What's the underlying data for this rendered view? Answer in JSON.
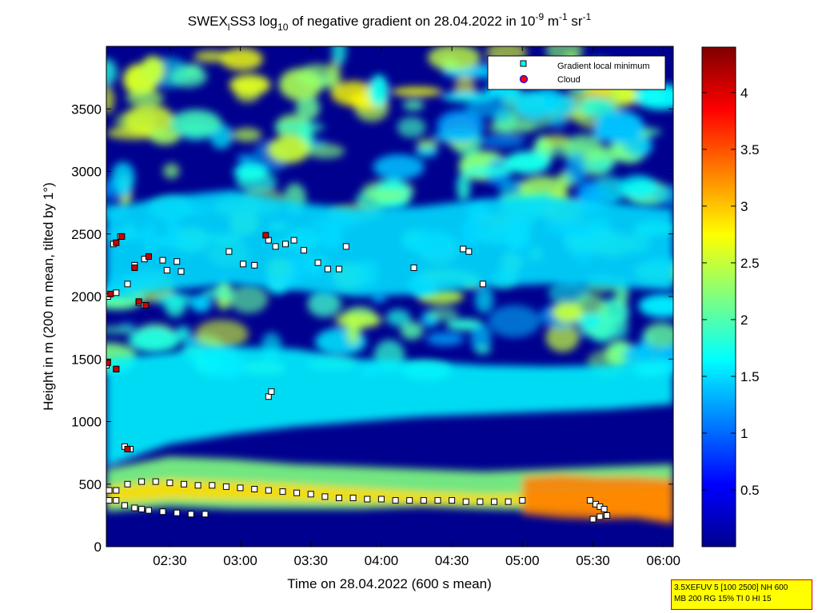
{
  "chart_data": {
    "type": "heatmap",
    "title": "SWEX_l SS3 log_10 of negative gradient on 28.04.2022 in 10^-9 m^-1 sr^-1",
    "title_parts": {
      "a": "SWEX",
      "b": "l",
      "c": "SS3 log",
      "d": "10",
      "e": " of negative gradient on 28.04.2022 in 10",
      "f": "-9",
      "g": " m",
      "h": "-1",
      "i": " sr",
      "j": "-1"
    },
    "xlabel": "Time on 28.04.2022 (600 s mean)",
    "ylabel": "Height in m (200 m mean, tilted by 1°)",
    "x_ticks": [
      "02:30",
      "03:00",
      "03:30",
      "04:00",
      "04:30",
      "05:00",
      "05:30",
      "06:00"
    ],
    "x_tick_hours": [
      2.5,
      3.0,
      3.5,
      4.0,
      4.5,
      5.0,
      5.5,
      6.0
    ],
    "xlim_hours": [
      2.05,
      6.07
    ],
    "y_ticks": [
      "0",
      "500",
      "1000",
      "1500",
      "2000",
      "2500",
      "3000",
      "3500"
    ],
    "y_tick_values": [
      0,
      500,
      1000,
      1500,
      2000,
      2500,
      3000,
      3500
    ],
    "ylim": [
      0,
      4000
    ],
    "colorbar": {
      "ticks": [
        "0.5",
        "1",
        "1.5",
        "2",
        "2.5",
        "3",
        "3.5",
        "4"
      ],
      "tick_values": [
        0.5,
        1,
        1.5,
        2,
        2.5,
        3,
        3.5,
        4
      ],
      "range": [
        0,
        4.4
      ],
      "colormap": "jet"
    },
    "legend": {
      "placement": "top-right",
      "entries": [
        {
          "label": "Gradient local minimum",
          "marker": "square",
          "color": "#00ffff"
        },
        {
          "label": "Cloud",
          "marker": "circle",
          "color": "#ff0000"
        }
      ]
    },
    "layers": [
      {
        "kind": "band",
        "from_hour": 2.05,
        "to_hour": 6.07,
        "lower_m": [
          280,
          320,
          300,
          300,
          300,
          320,
          300,
          290,
          280,
          260
        ],
        "upper_m": [
          620,
          720,
          700,
          660,
          640,
          620,
          600,
          620,
          640,
          660
        ],
        "level": 2.2
      },
      {
        "kind": "band",
        "from_hour": 2.05,
        "to_hour": 6.07,
        "lower_m": [
          340,
          380,
          370,
          360,
          350,
          340,
          340,
          320,
          260,
          200
        ],
        "upper_m": [
          480,
          540,
          520,
          500,
          470,
          440,
          420,
          430,
          450,
          480
        ],
        "level": 2.9
      },
      {
        "kind": "band",
        "from_hour": 5.0,
        "to_hour": 6.07,
        "lower_m": [
          260,
          230,
          220,
          230,
          180
        ],
        "upper_m": [
          560,
          580,
          560,
          560,
          540
        ],
        "level": 3.3
      },
      {
        "kind": "band",
        "from_hour": 2.05,
        "to_hour": 6.07,
        "lower_m": [
          640,
          820,
          900,
          960,
          1000,
          1040,
          1060,
          1080,
          1100,
          1140
        ],
        "upper_m": [
          1500,
          1550,
          1600,
          1580,
          1500,
          1480,
          1450,
          1440,
          1450,
          1500
        ],
        "level": 1.6
      },
      {
        "kind": "band",
        "from_hour": 2.05,
        "to_hour": 6.07,
        "lower_m": [
          2000,
          2050,
          2100,
          2050,
          2000,
          2020,
          2080,
          2100,
          2080,
          2050
        ],
        "upper_m": [
          2700,
          2800,
          2850,
          2750,
          2700,
          2720,
          2780,
          2800,
          2750,
          2700
        ],
        "level": 1.5
      }
    ],
    "series": [
      {
        "name": "Gradient local minimum",
        "marker": "square",
        "color": "#00ffff",
        "points": [
          {
            "x": 2.07,
            "y": 450
          },
          {
            "x": 2.12,
            "y": 450
          },
          {
            "x": 2.2,
            "y": 500
          },
          {
            "x": 2.3,
            "y": 520
          },
          {
            "x": 2.4,
            "y": 520
          },
          {
            "x": 2.5,
            "y": 510
          },
          {
            "x": 2.6,
            "y": 500
          },
          {
            "x": 2.7,
            "y": 490
          },
          {
            "x": 2.8,
            "y": 490
          },
          {
            "x": 2.9,
            "y": 480
          },
          {
            "x": 3.0,
            "y": 470
          },
          {
            "x": 3.1,
            "y": 460
          },
          {
            "x": 3.2,
            "y": 450
          },
          {
            "x": 3.3,
            "y": 440
          },
          {
            "x": 3.4,
            "y": 430
          },
          {
            "x": 3.5,
            "y": 420
          },
          {
            "x": 3.6,
            "y": 400
          },
          {
            "x": 3.7,
            "y": 390
          },
          {
            "x": 3.8,
            "y": 390
          },
          {
            "x": 3.9,
            "y": 380
          },
          {
            "x": 4.0,
            "y": 380
          },
          {
            "x": 4.1,
            "y": 370
          },
          {
            "x": 4.2,
            "y": 370
          },
          {
            "x": 4.3,
            "y": 370
          },
          {
            "x": 4.4,
            "y": 370
          },
          {
            "x": 4.5,
            "y": 370
          },
          {
            "x": 4.6,
            "y": 360
          },
          {
            "x": 4.7,
            "y": 360
          },
          {
            "x": 4.8,
            "y": 360
          },
          {
            "x": 4.9,
            "y": 360
          },
          {
            "x": 5.0,
            "y": 370
          },
          {
            "x": 2.07,
            "y": 370
          },
          {
            "x": 2.12,
            "y": 370
          },
          {
            "x": 2.18,
            "y": 330
          },
          {
            "x": 2.25,
            "y": 310
          },
          {
            "x": 2.3,
            "y": 300
          },
          {
            "x": 2.35,
            "y": 290
          },
          {
            "x": 2.45,
            "y": 280
          },
          {
            "x": 2.55,
            "y": 270
          },
          {
            "x": 2.65,
            "y": 260
          },
          {
            "x": 2.75,
            "y": 260
          },
          {
            "x": 5.48,
            "y": 370
          },
          {
            "x": 5.52,
            "y": 340
          },
          {
            "x": 5.55,
            "y": 320
          },
          {
            "x": 5.58,
            "y": 300
          },
          {
            "x": 5.5,
            "y": 220
          },
          {
            "x": 5.55,
            "y": 240
          },
          {
            "x": 5.6,
            "y": 250
          },
          {
            "x": 2.18,
            "y": 800
          },
          {
            "x": 2.22,
            "y": 780
          },
          {
            "x": 2.05,
            "y": 1450
          },
          {
            "x": 2.12,
            "y": 1420
          },
          {
            "x": 3.2,
            "y": 1200
          },
          {
            "x": 3.22,
            "y": 1240
          },
          {
            "x": 2.06,
            "y": 2000
          },
          {
            "x": 2.12,
            "y": 2030
          },
          {
            "x": 2.2,
            "y": 2100
          },
          {
            "x": 2.28,
            "y": 1950
          },
          {
            "x": 2.32,
            "y": 1930
          },
          {
            "x": 2.25,
            "y": 2250
          },
          {
            "x": 2.32,
            "y": 2300
          },
          {
            "x": 2.45,
            "y": 2290
          },
          {
            "x": 2.55,
            "y": 2280
          },
          {
            "x": 2.48,
            "y": 2210
          },
          {
            "x": 2.58,
            "y": 2200
          },
          {
            "x": 2.1,
            "y": 2420
          },
          {
            "x": 2.15,
            "y": 2480
          },
          {
            "x": 2.92,
            "y": 2360
          },
          {
            "x": 3.02,
            "y": 2260
          },
          {
            "x": 3.1,
            "y": 2250
          },
          {
            "x": 3.2,
            "y": 2450
          },
          {
            "x": 3.25,
            "y": 2400
          },
          {
            "x": 3.32,
            "y": 2420
          },
          {
            "x": 3.38,
            "y": 2450
          },
          {
            "x": 3.45,
            "y": 2370
          },
          {
            "x": 3.55,
            "y": 2270
          },
          {
            "x": 3.62,
            "y": 2220
          },
          {
            "x": 3.7,
            "y": 2220
          },
          {
            "x": 3.75,
            "y": 2400
          },
          {
            "x": 4.23,
            "y": 2230
          },
          {
            "x": 4.58,
            "y": 2380
          },
          {
            "x": 4.62,
            "y": 2360
          },
          {
            "x": 4.72,
            "y": 2100
          }
        ]
      },
      {
        "name": "Cloud",
        "marker": "circle",
        "color": "#ff0000",
        "points": [
          {
            "x": 2.08,
            "y": 2020
          },
          {
            "x": 2.12,
            "y": 2430
          },
          {
            "x": 2.16,
            "y": 2480
          },
          {
            "x": 2.25,
            "y": 2230
          },
          {
            "x": 2.35,
            "y": 2320
          },
          {
            "x": 2.28,
            "y": 1960
          },
          {
            "x": 2.33,
            "y": 1930
          },
          {
            "x": 2.2,
            "y": 780
          },
          {
            "x": 2.06,
            "y": 1470
          },
          {
            "x": 2.12,
            "y": 1420
          },
          {
            "x": 3.18,
            "y": 2490
          }
        ]
      }
    ]
  },
  "infobox": {
    "line1": "3.5XEFUV 5 [100 2500] NH 600",
    "line2": "MB 200 RG 15% TI 0 HI 15"
  }
}
